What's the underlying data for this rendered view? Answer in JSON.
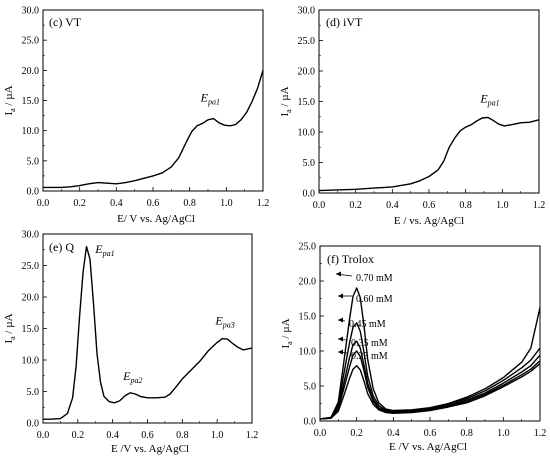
{
  "chart_data": [
    {
      "type": "line",
      "panel_label": "(c) VT",
      "xlabel": "E/ V vs. Ag/AgCl",
      "ylabel_main": "I",
      "ylabel_sub": "a",
      "ylabel_unit": " / µA",
      "xlim": [
        0,
        1.2
      ],
      "ylim": [
        0,
        30
      ],
      "xticks": [
        "0.0",
        "0.2",
        "0.4",
        "0.6",
        "0.8",
        "1.0",
        "1.2"
      ],
      "yticks": [
        "0.0",
        "5.0",
        "10.0",
        "15.0",
        "20.0",
        "25.0",
        "30.0"
      ],
      "annotations": [
        {
          "main": "E",
          "sub": "pa1",
          "x": 0.86,
          "y": 14.8
        }
      ],
      "series": [
        {
          "x": [
            0,
            0.1,
            0.15,
            0.2,
            0.25,
            0.3,
            0.35,
            0.4,
            0.45,
            0.5,
            0.55,
            0.6,
            0.65,
            0.7,
            0.74,
            0.78,
            0.81,
            0.84,
            0.87,
            0.9,
            0.93,
            0.96,
            0.99,
            1.02,
            1.05,
            1.08,
            1.11,
            1.14,
            1.17,
            1.2
          ],
          "y": [
            0.6,
            0.6,
            0.7,
            0.9,
            1.2,
            1.4,
            1.3,
            1.2,
            1.4,
            1.7,
            2.1,
            2.5,
            3.0,
            4.0,
            5.5,
            8.0,
            9.8,
            10.8,
            11.2,
            11.8,
            12.0,
            11.3,
            10.9,
            10.8,
            11.0,
            11.8,
            13.0,
            14.8,
            17.0,
            20.0
          ]
        }
      ]
    },
    {
      "type": "line",
      "panel_label": "(d) iVT",
      "xlabel": "E / vs. Ag/AgCl",
      "ylabel_main": "I",
      "ylabel_sub": "a",
      "ylabel_unit": " / µA",
      "xlim": [
        0,
        1.2
      ],
      "ylim": [
        0,
        30
      ],
      "xticks": [
        "0.0",
        "0.2",
        "0.4",
        "0.6",
        "0.8",
        "1.0",
        "1.2"
      ],
      "yticks": [
        "0.0",
        "5.0",
        "10.0",
        "15.0",
        "20.0",
        "25.0",
        "30.0"
      ],
      "annotations": [
        {
          "main": "E",
          "sub": "pa1",
          "x": 0.88,
          "y": 14.8
        }
      ],
      "series": [
        {
          "x": [
            0,
            0.1,
            0.2,
            0.3,
            0.4,
            0.5,
            0.55,
            0.6,
            0.65,
            0.68,
            0.71,
            0.74,
            0.77,
            0.8,
            0.83,
            0.86,
            0.89,
            0.92,
            0.95,
            0.98,
            1.01,
            1.05,
            1.1,
            1.15,
            1.2
          ],
          "y": [
            0.4,
            0.5,
            0.6,
            0.8,
            1.0,
            1.5,
            2.0,
            2.7,
            3.8,
            5.2,
            7.5,
            9.0,
            10.2,
            10.8,
            11.2,
            11.8,
            12.3,
            12.4,
            11.9,
            11.3,
            11.0,
            11.2,
            11.5,
            11.6,
            12.0
          ]
        }
      ]
    },
    {
      "type": "line",
      "panel_label": "(e) Q",
      "xlabel": "E  /V vs. Ag/AgCl",
      "ylabel_main": "I",
      "ylabel_sub": "a",
      "ylabel_unit": " / µA",
      "xlim": [
        0,
        1.2
      ],
      "ylim": [
        0,
        30
      ],
      "xticks": [
        "0.0",
        "0.2",
        "0.4",
        "0.6",
        "0.8",
        "1.0",
        "1.2"
      ],
      "yticks": [
        "0.0",
        "5.0",
        "10.0",
        "15.0",
        "20.0",
        "25.0",
        "30.0"
      ],
      "annotations": [
        {
          "main": "E",
          "sub": "pa1",
          "x": 0.3,
          "y": 27.0
        },
        {
          "main": "E",
          "sub": "pa2",
          "x": 0.46,
          "y": 6.8
        },
        {
          "main": "E",
          "sub": "pa3",
          "x": 0.99,
          "y": 15.6
        }
      ],
      "series": [
        {
          "x": [
            0,
            0.05,
            0.1,
            0.14,
            0.17,
            0.19,
            0.21,
            0.23,
            0.25,
            0.27,
            0.29,
            0.31,
            0.33,
            0.35,
            0.38,
            0.41,
            0.44,
            0.47,
            0.5,
            0.53,
            0.56,
            0.6,
            0.65,
            0.7,
            0.73,
            0.76,
            0.8,
            0.85,
            0.9,
            0.95,
            1.0,
            1.03,
            1.06,
            1.09,
            1.12,
            1.15,
            1.2
          ],
          "y": [
            0.6,
            0.6,
            0.7,
            1.5,
            4.0,
            9.0,
            17.0,
            24.0,
            28.0,
            26.0,
            19.0,
            11.0,
            6.5,
            4.2,
            3.4,
            3.2,
            3.5,
            4.3,
            4.8,
            4.6,
            4.2,
            4.0,
            4.0,
            4.1,
            4.6,
            5.6,
            7.0,
            8.4,
            9.8,
            11.5,
            12.8,
            13.4,
            13.3,
            12.6,
            12.0,
            11.6,
            11.9
          ]
        }
      ]
    },
    {
      "type": "line",
      "panel_label": "(f) Trolox",
      "xlabel": "E /V vs. Ag/AgCl",
      "ylabel_main": "I",
      "ylabel_sub": "a",
      "ylabel_unit": " / µA",
      "xlim": [
        0,
        1.2
      ],
      "ylim": [
        0,
        25
      ],
      "xticks": [
        "0.0",
        "0.2",
        "0.4",
        "0.6",
        "0.8",
        "1.0",
        "1.2"
      ],
      "yticks": [
        "0.0",
        "5.0",
        "10.0",
        "15.0",
        "20.0",
        "25.0"
      ],
      "series": [
        {
          "name": "0.25 mM",
          "x": [
            0,
            0.06,
            0.1,
            0.13,
            0.16,
            0.18,
            0.2,
            0.22,
            0.24,
            0.26,
            0.29,
            0.32,
            0.36,
            0.4,
            0.5,
            0.6,
            0.7,
            0.8,
            0.9,
            1.0,
            1.1,
            1.15,
            1.2
          ],
          "y": [
            0.3,
            0.4,
            1.4,
            3.6,
            6.0,
            7.4,
            7.9,
            7.3,
            5.7,
            3.9,
            2.4,
            1.6,
            1.2,
            1.1,
            1.2,
            1.5,
            2.0,
            2.6,
            3.6,
            4.9,
            6.3,
            7.1,
            8.2
          ]
        },
        {
          "name": "0.35 mM",
          "x": [
            0,
            0.06,
            0.1,
            0.13,
            0.16,
            0.18,
            0.2,
            0.22,
            0.24,
            0.26,
            0.29,
            0.32,
            0.36,
            0.4,
            0.5,
            0.6,
            0.7,
            0.8,
            0.9,
            1.0,
            1.1,
            1.15,
            1.2
          ],
          "y": [
            0.3,
            0.4,
            1.7,
            4.6,
            7.6,
            9.4,
            10.0,
            9.2,
            7.2,
            4.8,
            2.8,
            1.8,
            1.3,
            1.2,
            1.3,
            1.6,
            2.1,
            2.8,
            3.8,
            5.1,
            6.6,
            7.4,
            8.6
          ]
        },
        {
          "name": "0.45 mM",
          "x": [
            0,
            0.06,
            0.1,
            0.13,
            0.16,
            0.18,
            0.2,
            0.22,
            0.24,
            0.26,
            0.29,
            0.32,
            0.36,
            0.4,
            0.5,
            0.6,
            0.7,
            0.8,
            0.9,
            1.0,
            1.1,
            1.15,
            1.2
          ],
          "y": [
            0.3,
            0.4,
            1.9,
            5.4,
            8.9,
            10.9,
            11.4,
            10.4,
            8.0,
            5.4,
            3.1,
            1.9,
            1.4,
            1.3,
            1.4,
            1.7,
            2.2,
            3.0,
            4.0,
            5.4,
            7.0,
            7.9,
            9.4
          ]
        },
        {
          "name": "0.60 mM",
          "x": [
            0,
            0.06,
            0.1,
            0.13,
            0.16,
            0.18,
            0.2,
            0.22,
            0.24,
            0.26,
            0.29,
            0.32,
            0.36,
            0.4,
            0.5,
            0.6,
            0.7,
            0.8,
            0.9,
            1.0,
            1.1,
            1.15,
            1.2
          ],
          "y": [
            0.3,
            0.5,
            2.3,
            6.7,
            11.0,
            13.4,
            14.0,
            12.8,
            9.8,
            6.4,
            3.6,
            2.2,
            1.5,
            1.4,
            1.5,
            1.8,
            2.4,
            3.2,
            4.3,
            5.8,
            7.6,
            8.7,
            10.4
          ]
        },
        {
          "name": "0.70 mM",
          "x": [
            0,
            0.06,
            0.1,
            0.13,
            0.16,
            0.18,
            0.2,
            0.22,
            0.24,
            0.26,
            0.29,
            0.32,
            0.36,
            0.4,
            0.5,
            0.6,
            0.7,
            0.8,
            0.9,
            1.0,
            1.1,
            1.15,
            1.2
          ],
          "y": [
            0.3,
            0.5,
            2.7,
            8.4,
            14.3,
            17.8,
            19.0,
            17.6,
            13.6,
            8.8,
            4.6,
            2.6,
            1.7,
            1.5,
            1.6,
            1.9,
            2.5,
            3.4,
            4.6,
            6.2,
            8.4,
            10.4,
            16.2
          ]
        }
      ],
      "concentration_labels": [
        "0.70 mM",
        "0.60 mM",
        "0.45 mM",
        "0.35 mM",
        "0.25 mM"
      ]
    }
  ]
}
